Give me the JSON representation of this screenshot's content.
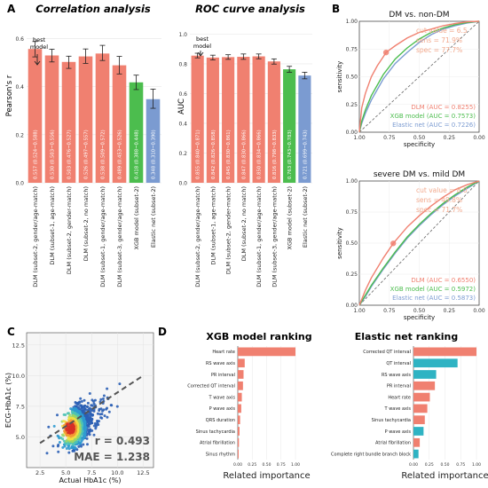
{
  "panels": {
    "A": {
      "letter": "A",
      "corr": {
        "title": "Correlation analysis",
        "ylabel": "Pearson's r",
        "yticks": [
          "0.0",
          "0.2",
          "0.4",
          "0.6"
        ],
        "annotation": "best model"
      },
      "roc": {
        "title": "ROC curve analysis",
        "ylabel": "AUC",
        "yticks": [
          "0.0",
          "0.2",
          "0.4",
          "0.6",
          "0.8",
          "1.0"
        ],
        "annotation": "best model"
      }
    },
    "B": {
      "letter": "B",
      "top": {
        "title": "DM vs. non-DM",
        "xlabel": "specificity",
        "ylabel": "sensitivity",
        "xticks": [
          "1.00",
          "0.75",
          "0.50",
          "0.25",
          "0.00"
        ],
        "yticks": [
          "0.00",
          "0.25",
          "0.50",
          "0.75",
          "1.00"
        ],
        "cut": [
          "cut value = 6.5",
          "sens = 71.9%",
          "spec = 77.7%"
        ],
        "legend": [
          "DLM (AUC = 0.8255)",
          "XGB model (AUC = 0.7573)",
          "Elastic net (AUC = 0.7226)"
        ]
      },
      "bottom": {
        "title": "severe DM vs. mild DM",
        "xlabel": "specificity",
        "ylabel": "sensitivity",
        "xticks": [
          "1.00",
          "0.75",
          "0.50",
          "0.25",
          "0.00"
        ],
        "yticks": [
          "0.00",
          "0.25",
          "0.50",
          "0.75",
          "1.00"
        ],
        "cut": [
          "cut value = 8.0",
          "sens = 49.8%",
          "spec = 71.7%"
        ],
        "legend": [
          "DLM (AUC = 0.6550)",
          "XGB model (AUC = 0.5972)",
          "Elastic net (AUC = 0.5873)"
        ]
      }
    },
    "C": {
      "letter": "C",
      "xlabel": "Actual HbA1c (%)",
      "ylabel": "ECG-HbA1c (%)",
      "xticks": [
        "2.5",
        "5.0",
        "7.5",
        "10.0",
        "12.5"
      ],
      "yticks": [
        "5.0",
        "7.5",
        "10.0",
        "12.5"
      ],
      "r_text": "r = 0.493",
      "mae_text": "MAE = 1.238"
    },
    "D": {
      "letter": "D",
      "xgb": {
        "title": "XGB model ranking",
        "xlabel": "Related importance"
      },
      "enet": {
        "title": "Elastic net ranking",
        "xlabel": "Related importance"
      },
      "xticks": [
        "0.00",
        "0.25",
        "0.50",
        "0.75",
        "1.00"
      ]
    }
  },
  "colors": {
    "dlm": "#f08070",
    "xgb": "#4cbd4e",
    "enet": "#7b9bd1",
    "imp_pos": "#f08070",
    "imp_neg": "#2fb3c3",
    "cut_text": "#f2a98d",
    "diag": "#666666"
  },
  "chart_data": [
    {
      "id": "correlation",
      "type": "bar",
      "title": "Correlation analysis",
      "ylabel": "Pearson's r",
      "ylim": [
        0,
        0.65
      ],
      "categories": [
        "DLM (subset-2, gender/age-match)",
        "DLM (subset-1, age-match)",
        "DLM (subset-2, gender-match)",
        "DLM (subset-2, no match)",
        "DLM (subset-1, gender/age-match)",
        "DLM (subset-3, gender/age-match)",
        "XGB model (subset-2)",
        "Elastic net (subset-2)"
      ],
      "values": [
        0.557,
        0.53,
        0.503,
        0.526,
        0.538,
        0.489,
        0.418,
        0.348
      ],
      "ci_low": [
        0.524,
        0.503,
        0.476,
        0.497,
        0.509,
        0.453,
        0.388,
        0.31
      ],
      "ci_high": [
        0.588,
        0.556,
        0.527,
        0.557,
        0.572,
        0.526,
        0.448,
        0.39
      ],
      "value_labels": [
        "0.557 (0.524~0.588)",
        "0.530 (0.503~0.556)",
        "0.503 (0.476~0.527)",
        "0.526 (0.497~0.557)",
        "0.538 (0.509~0.572)",
        "0.489 (0.453~0.526)",
        "0.418 (0.388~0.448)",
        "0.348 (0.310~0.390)"
      ],
      "bar_colors": [
        "dlm",
        "dlm",
        "dlm",
        "dlm",
        "dlm",
        "dlm",
        "xgb",
        "enet"
      ]
    },
    {
      "id": "roc_auc",
      "type": "bar",
      "title": "ROC curve analysis",
      "ylabel": "AUC",
      "ylim": [
        0,
        1.05
      ],
      "categories": [
        "DLM (subset-2, gender/age-match)",
        "DLM (subset-1, age-match)",
        "DLM (subset-2, gender-match)",
        "DLM (subset-2, no match)",
        "DLM (subset-1, gender/age-match)",
        "DLM (subset-3, gender/age-match)",
        "XGB model (subset-2)",
        "Elastic net (subset-2)"
      ],
      "values": [
        0.855,
        0.842,
        0.845,
        0.847,
        0.85,
        0.816,
        0.763,
        0.721
      ],
      "ci_low": [
        0.84,
        0.826,
        0.83,
        0.83,
        0.834,
        0.798,
        0.743,
        0.699
      ],
      "ci_high": [
        0.871,
        0.858,
        0.861,
        0.866,
        0.866,
        0.833,
        0.783,
        0.743
      ],
      "value_labels": [
        "0.855 (0.840~0.871)",
        "0.842 (0.826~0.858)",
        "0.845 (0.830~0.861)",
        "0.847 (0.830~0.866)",
        "0.850 (0.834~0.866)",
        "0.816 (0.798~0.833)",
        "0.763 (0.743~0.783)",
        "0.721 (0.699~0.743)"
      ],
      "bar_colors": [
        "dlm",
        "dlm",
        "dlm",
        "dlm",
        "dlm",
        "dlm",
        "xgb",
        "enet"
      ]
    },
    {
      "id": "roc_dm",
      "type": "line",
      "title": "DM vs. non-DM",
      "xlabel": "specificity",
      "ylabel": "sensitivity",
      "xlim": [
        1,
        0
      ],
      "ylim": [
        0,
        1
      ],
      "series": [
        {
          "name": "DLM (AUC = 0.8255)",
          "color": "dlm",
          "x": [
            1,
            0.98,
            0.95,
            0.9,
            0.85,
            0.8,
            0.777,
            0.7,
            0.6,
            0.5,
            0.4,
            0.3,
            0.2,
            0.1,
            0
          ],
          "y": [
            0,
            0.22,
            0.35,
            0.5,
            0.6,
            0.68,
            0.719,
            0.78,
            0.85,
            0.9,
            0.93,
            0.96,
            0.98,
            0.995,
            1
          ]
        },
        {
          "name": "XGB model (AUC = 0.7573)",
          "color": "xgb",
          "x": [
            1,
            0.98,
            0.95,
            0.9,
            0.8,
            0.7,
            0.6,
            0.5,
            0.4,
            0.3,
            0.2,
            0.1,
            0
          ],
          "y": [
            0,
            0.1,
            0.2,
            0.33,
            0.52,
            0.66,
            0.76,
            0.84,
            0.9,
            0.94,
            0.97,
            0.99,
            1
          ]
        },
        {
          "name": "Elastic net (AUC = 0.7226)",
          "color": "enet",
          "x": [
            1,
            0.98,
            0.95,
            0.9,
            0.8,
            0.7,
            0.6,
            0.5,
            0.4,
            0.3,
            0.2,
            0.1,
            0
          ],
          "y": [
            0,
            0.08,
            0.17,
            0.29,
            0.48,
            0.62,
            0.72,
            0.81,
            0.88,
            0.93,
            0.96,
            0.985,
            1
          ]
        }
      ],
      "cut_point": {
        "x": 0.777,
        "y": 0.719
      }
    },
    {
      "id": "roc_severe",
      "type": "line",
      "title": "severe DM vs. mild DM",
      "xlabel": "specificity",
      "ylabel": "sensitivity",
      "xlim": [
        1,
        0
      ],
      "ylim": [
        0,
        1
      ],
      "series": [
        {
          "name": "DLM (AUC = 0.6550)",
          "color": "dlm",
          "x": [
            1,
            0.95,
            0.9,
            0.8,
            0.717,
            0.6,
            0.5,
            0.4,
            0.3,
            0.2,
            0.1,
            0
          ],
          "y": [
            0,
            0.12,
            0.22,
            0.38,
            0.498,
            0.63,
            0.72,
            0.8,
            0.87,
            0.93,
            0.97,
            1
          ]
        },
        {
          "name": "XGB model (AUC = 0.5972)",
          "color": "xgb",
          "x": [
            1,
            0.95,
            0.9,
            0.8,
            0.7,
            0.6,
            0.5,
            0.4,
            0.3,
            0.2,
            0.1,
            0
          ],
          "y": [
            0,
            0.08,
            0.16,
            0.3,
            0.43,
            0.55,
            0.65,
            0.74,
            0.82,
            0.89,
            0.95,
            1
          ]
        },
        {
          "name": "Elastic net (AUC = 0.5873)",
          "color": "enet",
          "x": [
            1,
            0.95,
            0.9,
            0.8,
            0.7,
            0.6,
            0.5,
            0.4,
            0.3,
            0.2,
            0.1,
            0
          ],
          "y": [
            0,
            0.07,
            0.15,
            0.29,
            0.42,
            0.54,
            0.64,
            0.73,
            0.81,
            0.88,
            0.94,
            1
          ]
        }
      ],
      "cut_point": {
        "x": 0.717,
        "y": 0.498
      }
    },
    {
      "id": "scatter",
      "type": "scatter",
      "xlabel": "Actual HbA1c (%)",
      "ylabel": "ECG-HbA1c (%)",
      "xlim": [
        1.2,
        13.5
      ],
      "ylim": [
        2.5,
        13.5
      ],
      "r": 0.493,
      "mae": 1.238,
      "fit_line": {
        "x": [
          2.5,
          12.5
        ],
        "y": [
          4.5,
          10.0
        ]
      }
    },
    {
      "id": "xgb_ranking",
      "type": "bar",
      "title": "XGB model ranking",
      "xlabel": "Related importance",
      "xlim": [
        0,
        1
      ],
      "categories": [
        "Heart rate",
        "RS wave axis",
        "PR interval",
        "Corrected QT interval",
        "T wave axis",
        "P wave axis",
        "QRS duration",
        "Sinus tachycardia",
        "Atrial fibrillation",
        "Sinus rhythm"
      ],
      "values": [
        1.0,
        0.12,
        0.1,
        0.09,
        0.07,
        0.06,
        0.04,
        0.03,
        0.02,
        0.01
      ],
      "signs": [
        "pos",
        "pos",
        "pos",
        "pos",
        "pos",
        "pos",
        "pos",
        "pos",
        "pos",
        "pos"
      ]
    },
    {
      "id": "enet_ranking",
      "type": "bar",
      "title": "Elastic net ranking",
      "xlabel": "Related importance",
      "xlim": [
        0,
        1
      ],
      "categories": [
        "Corrected QT interval",
        "QT interval",
        "RS wave axis",
        "PR interval",
        "Heart rate",
        "T wave axis",
        "Sinus tachycardia",
        "P wave axis",
        "Atrial fibrillation",
        "Complete right bundle branch block"
      ],
      "values": [
        1.0,
        0.7,
        0.36,
        0.34,
        0.26,
        0.22,
        0.18,
        0.16,
        0.1,
        0.08
      ],
      "signs": [
        "pos",
        "neg",
        "neg",
        "pos",
        "pos",
        "pos",
        "pos",
        "neg",
        "pos",
        "neg"
      ]
    }
  ]
}
